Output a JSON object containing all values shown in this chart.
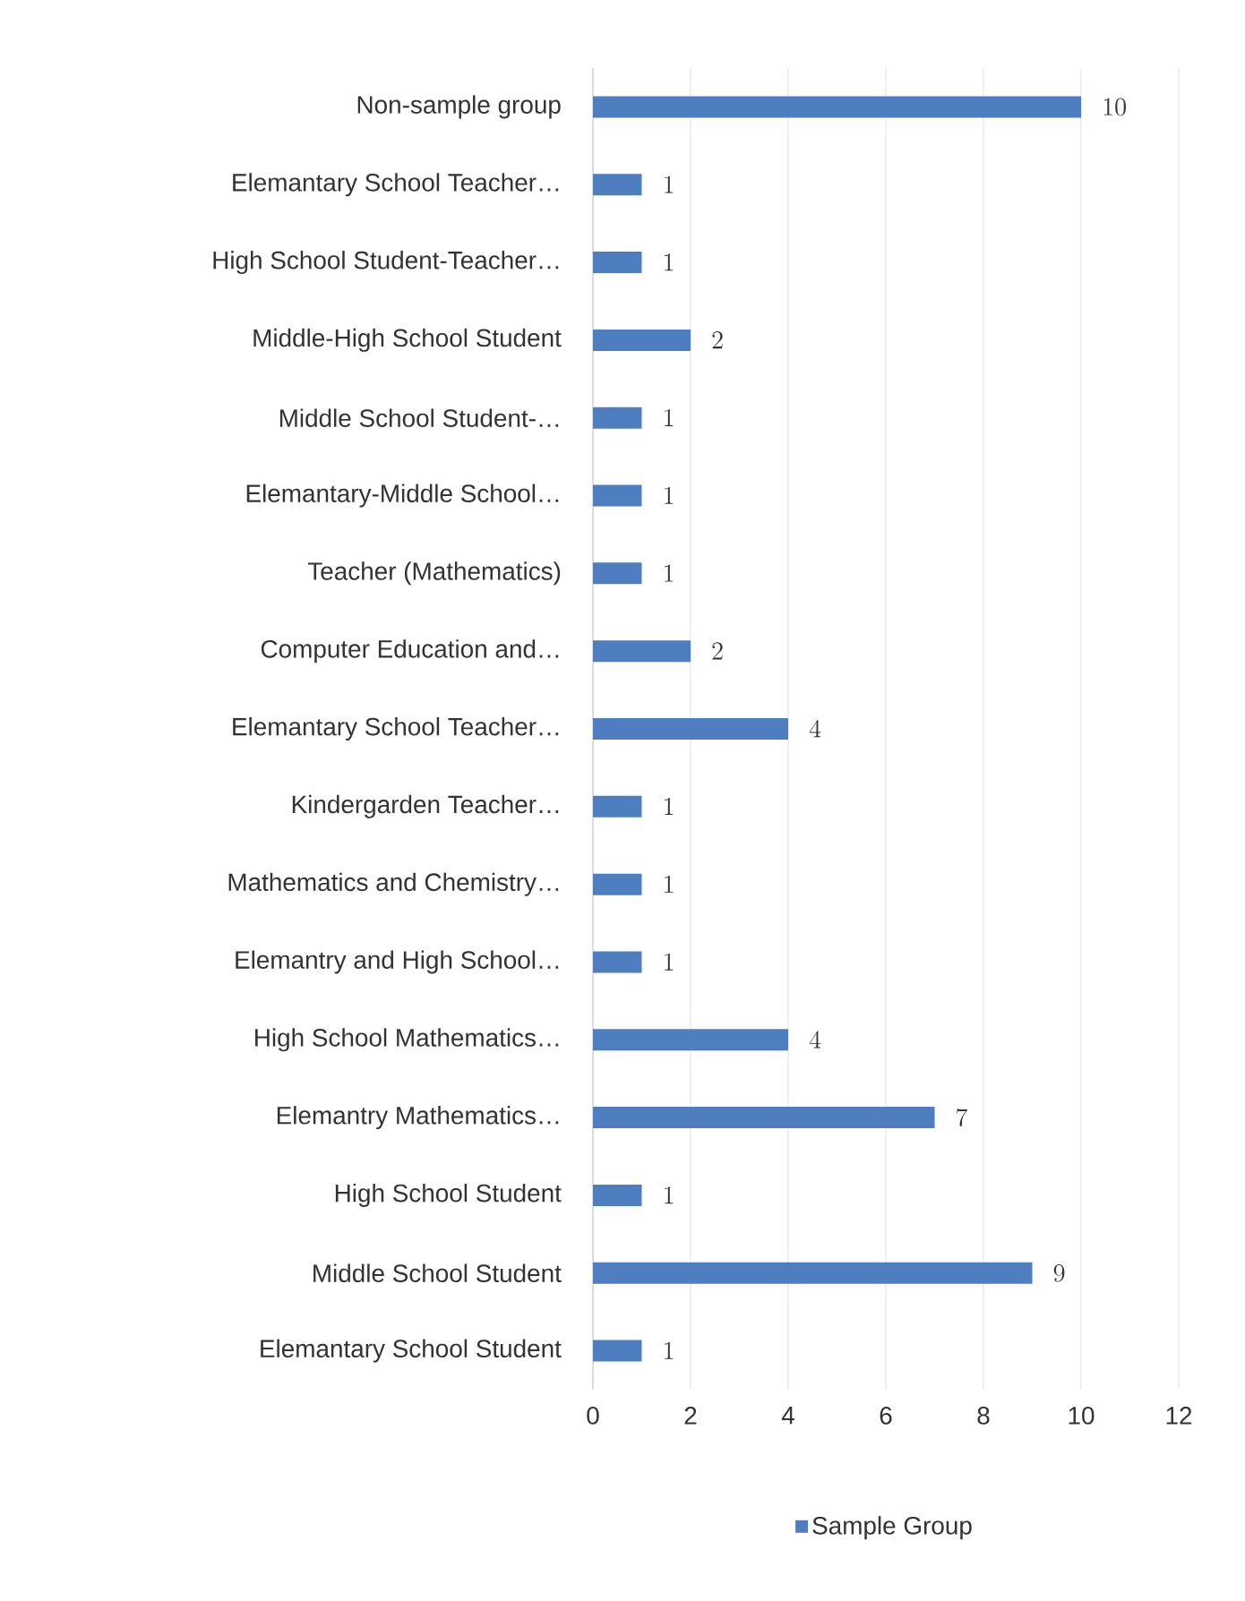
{
  "chart_data": {
    "type": "bar",
    "orientation": "horizontal",
    "categories": [
      "Non-sample group",
      "Elemantary School Teacher…",
      "High School Student-Teacher…",
      "Middle-High School Student",
      "Middle School Student-…",
      "Elemantary-Middle School…",
      "Teacher (Mathematics)",
      "Computer Education and…",
      "Elemantary School Teacher…",
      "Kindergarden Teacher…",
      "Mathematics and Chemistry…",
      "Elemantry and High School…",
      "High School Mathematics…",
      "Elemantry Mathematics…",
      "High School Student",
      "Middle School Student",
      "Elemantary School Student"
    ],
    "series": [
      {
        "name": "Sample Group",
        "color": "#4e7ebf",
        "values": [
          10,
          1,
          1,
          2,
          1,
          1,
          1,
          2,
          4,
          1,
          1,
          1,
          4,
          7,
          1,
          9,
          1
        ]
      }
    ],
    "xlim": [
      0,
      12
    ],
    "xticks": [
      0,
      2,
      4,
      6,
      8,
      10,
      12
    ],
    "grid": "x",
    "legend": "bottom",
    "data_labels": true
  }
}
